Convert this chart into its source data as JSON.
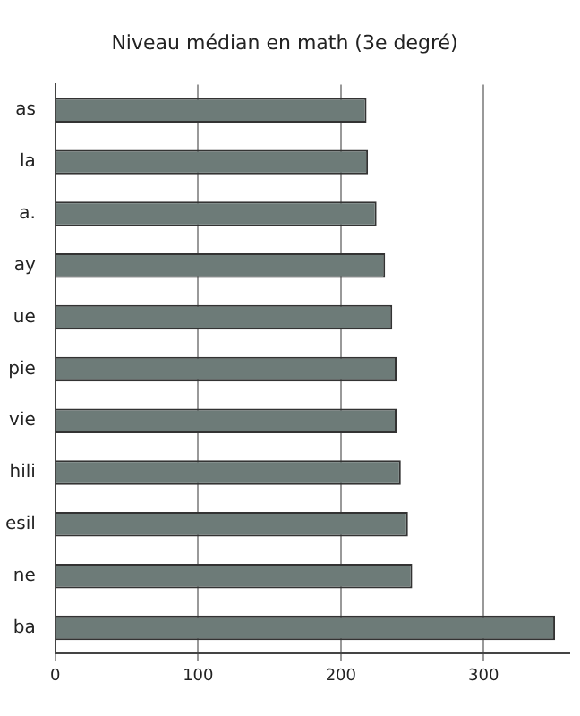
{
  "chart_data": {
    "type": "bar",
    "orientation": "horizontal",
    "title": "Niveau médian en math (3e degré)",
    "categories": [
      "as",
      "la",
      "a.",
      "ay",
      "ue",
      "pie",
      "vie",
      "hili",
      "esil",
      "ne",
      "ba"
    ],
    "values": [
      218,
      219,
      225,
      231,
      236,
      239,
      239,
      242,
      247,
      250,
      350
    ],
    "color": "#6d7b78",
    "xlim": [
      0,
      360
    ],
    "xticks": [
      0,
      100,
      200,
      300
    ],
    "grid": "x"
  }
}
